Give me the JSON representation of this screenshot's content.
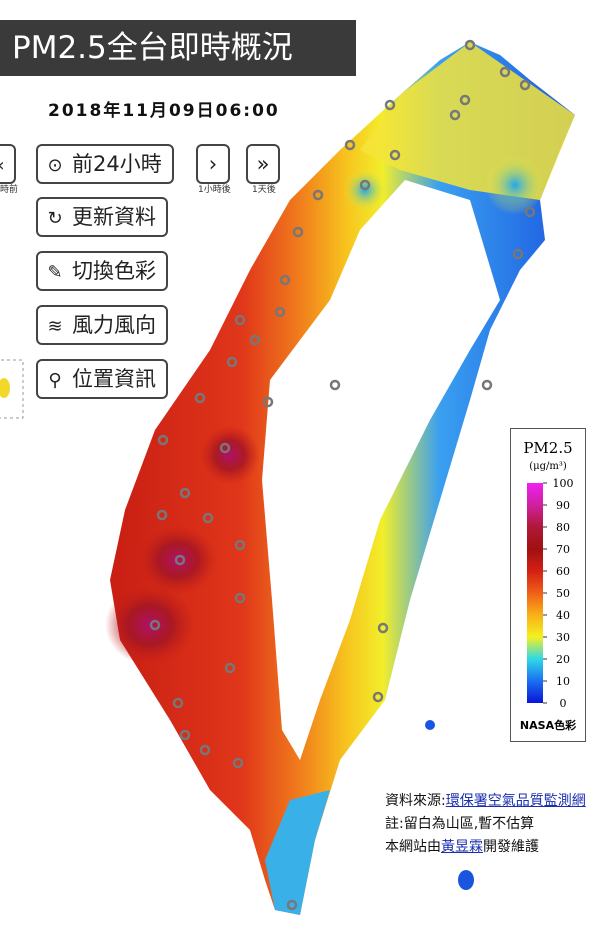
{
  "header": {
    "title": "PM2.5全台即時概況",
    "timestamp": "2018年11月09日06:00"
  },
  "controls": {
    "prev_caption": "時前",
    "play_24h": "前24小時",
    "next_hour_caption": "1小時後",
    "next_day_caption": "1天後",
    "refresh": "更新資料",
    "switch_color": "切換色彩",
    "wind": "風力風向",
    "location": "位置資訊"
  },
  "legend": {
    "title": "PM2.5",
    "unit": "(μg/m³)",
    "range": [
      0,
      100
    ],
    "ticks": [
      100,
      90,
      80,
      70,
      60,
      50,
      40,
      30,
      20,
      10,
      0
    ],
    "scheme": "NASA色彩"
  },
  "footer": {
    "source_label": "資料來源:",
    "source_link": "環保署空氣品質監測網",
    "note": "註:留白為山區,暫不估算",
    "credit_prefix": "本網站由",
    "author": "黃昱霖",
    "credit_suffix": "開發維護"
  }
}
